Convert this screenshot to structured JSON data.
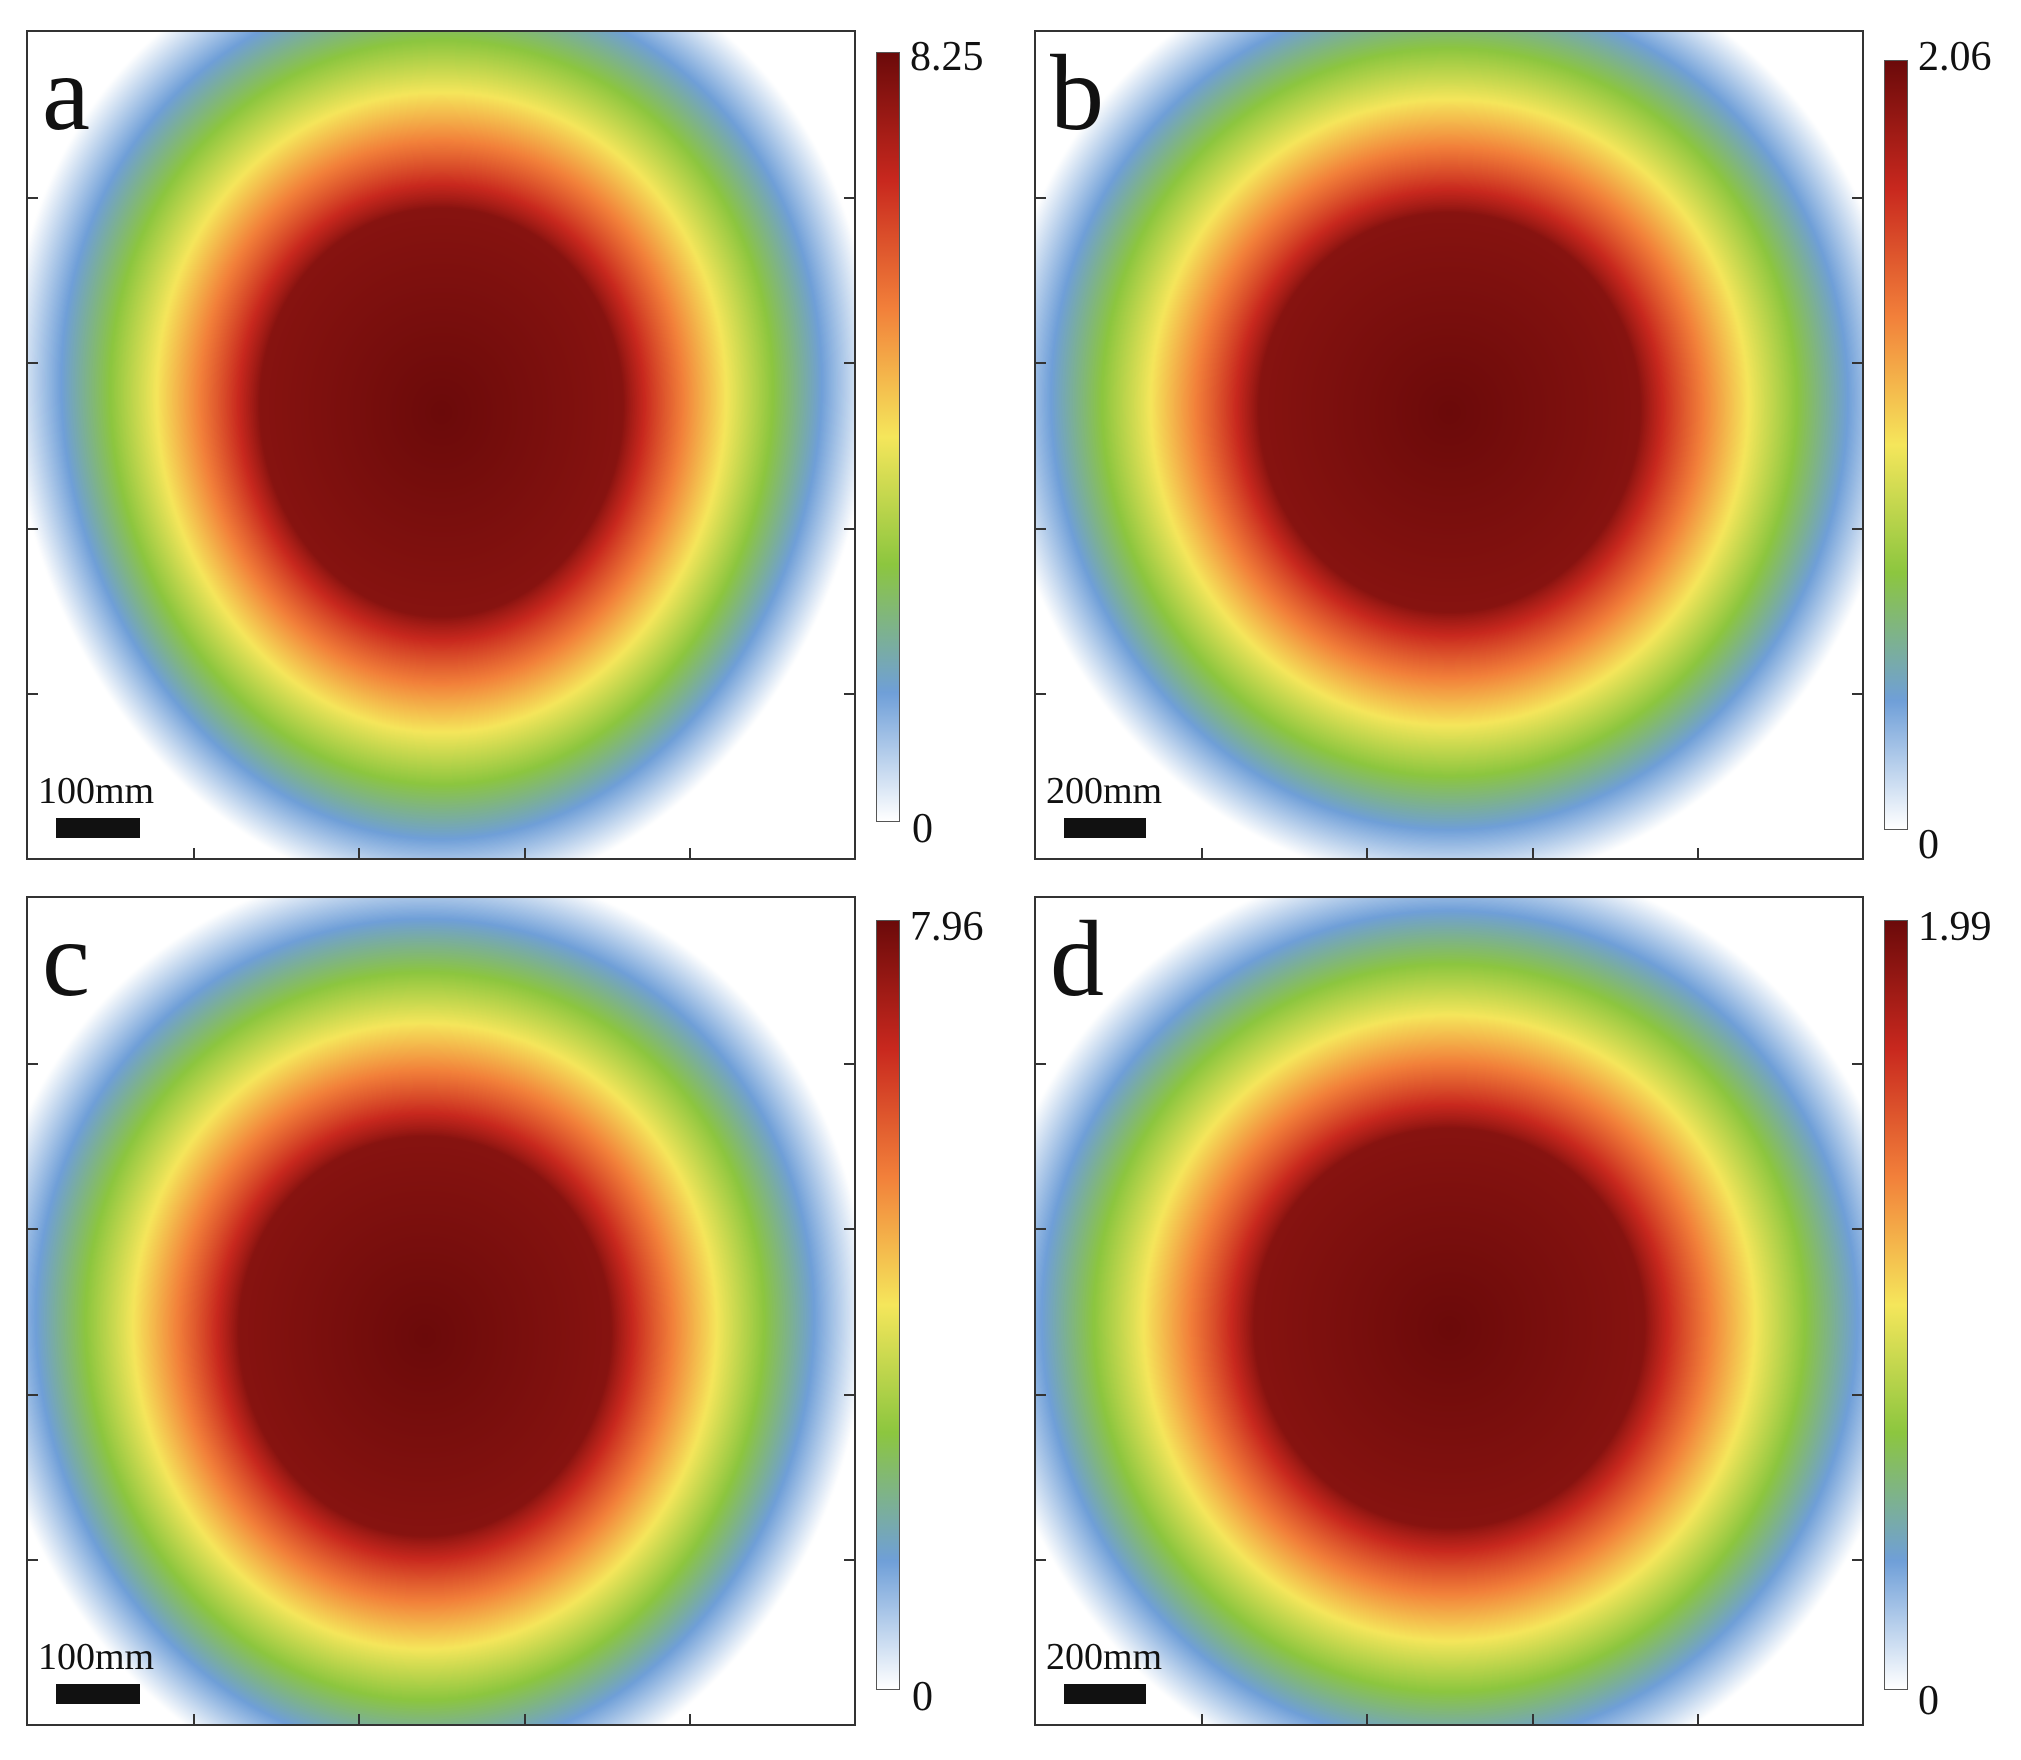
{
  "chart_data": [
    {
      "type": "heatmap",
      "panel_label": "a",
      "scale_bar": "100mm",
      "colorbar": {
        "min_label": "0",
        "max_label": "8.25",
        "min": 0,
        "max": 8.25
      }
    },
    {
      "type": "heatmap",
      "panel_label": "b",
      "scale_bar": "200mm",
      "colorbar": {
        "min_label": "0",
        "max_label": "2.06",
        "min": 0,
        "max": 2.06
      }
    },
    {
      "type": "heatmap",
      "panel_label": "c",
      "scale_bar": "100mm",
      "colorbar": {
        "min_label": "0",
        "max_label": "7.96",
        "min": 0,
        "max": 7.96
      }
    },
    {
      "type": "heatmap",
      "panel_label": "d",
      "scale_bar": "200mm",
      "colorbar": {
        "min_label": "0",
        "max_label": "1.99",
        "min": 0,
        "max": 1.99
      }
    }
  ],
  "colormap": [
    "#ffffff",
    "#6f9fd8",
    "#8cc63f",
    "#f5e65b",
    "#f2803a",
    "#c8281e",
    "#6b0a0a"
  ]
}
